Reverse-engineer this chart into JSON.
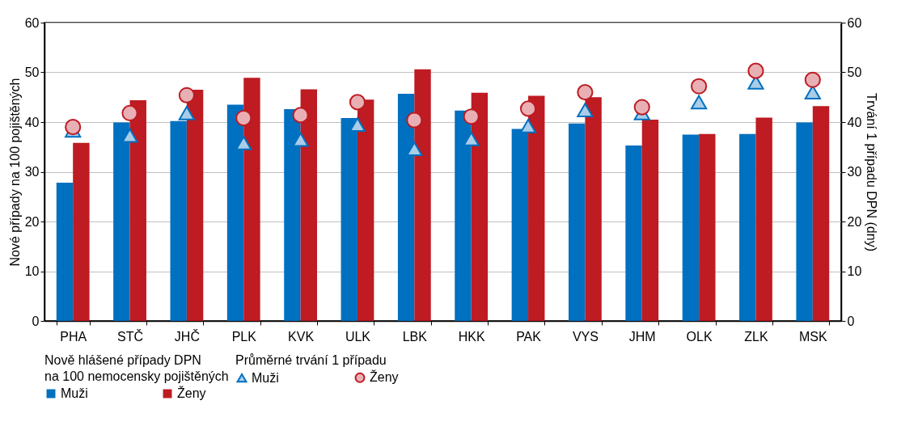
{
  "chart_data": {
    "type": "bar",
    "categories": [
      "PHA",
      "STČ",
      "JHČ",
      "PLK",
      "KVK",
      "ULK",
      "LBK",
      "HKK",
      "PAK",
      "VYS",
      "JHM",
      "OLK",
      "ZLK",
      "MSK"
    ],
    "ylabel": "Nové případy na 100 pojištěných",
    "y2label": "Trvání 1 případu DPN (dny)",
    "legend_title": [
      "Nově hlášené případy DPN\nna 100 nemocensky pojištěných",
      "Průměrné trvání 1 případu"
    ],
    "series": [
      {
        "name": "Muži",
        "color": "#0070c0",
        "values": [
          27.8,
          39.9,
          40.2,
          43.5,
          42.6,
          40.8,
          45.7,
          42.3,
          38.6,
          39.7,
          35.3,
          37.5,
          37.6,
          39.9
        ]
      },
      {
        "name": "Ženy",
        "color": "#be1b22",
        "values": [
          35.8,
          44.4,
          46.5,
          48.9,
          46.6,
          44.5,
          50.6,
          45.9,
          45.3,
          45.0,
          40.5,
          37.6,
          40.9,
          43.2
        ]
      },
      {
        "name": "Muži",
        "type": "scatter",
        "axis": "y2",
        "marker": "triangle",
        "color": "#a9cde8",
        "values": [
          38.3,
          37.3,
          41.8,
          35.8,
          36.5,
          39.5,
          34.6,
          36.6,
          39.2,
          42.4,
          41.8,
          44.0,
          48.0,
          46.0
        ]
      },
      {
        "name": "Ženy",
        "type": "scatter",
        "axis": "y2",
        "marker": "circle",
        "color": "#e8b0b4",
        "values": [
          39.0,
          41.8,
          45.4,
          40.8,
          41.4,
          44.0,
          40.4,
          41.1,
          42.7,
          46.0,
          43.0,
          47.2,
          50.3,
          48.5
        ]
      }
    ],
    "ylim": [
      0,
      60
    ],
    "yticks": [
      0,
      10,
      20,
      30,
      40,
      50,
      60
    ],
    "y2lim": [
      0,
      60
    ],
    "y2ticks": [
      0,
      10,
      20,
      30,
      40,
      50,
      60
    ],
    "grid": "y",
    "legend": "bottom"
  }
}
